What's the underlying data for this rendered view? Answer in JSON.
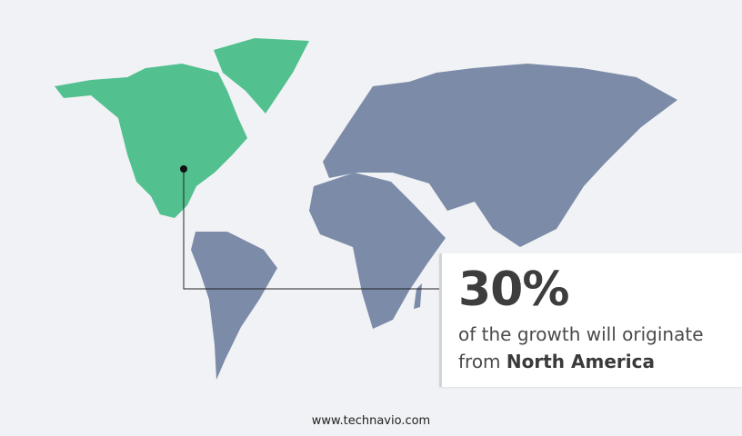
{
  "colors": {
    "highlight_region": "#52c08f",
    "other_regions": "#7b8ba8",
    "background": "#f1f2f5"
  },
  "highlight_region": "North America",
  "callout": {
    "value": "30%",
    "text_line1": "of the growth will originate",
    "text_from": "from",
    "region": "North America"
  },
  "footer": {
    "url": "www.technavio.com"
  }
}
